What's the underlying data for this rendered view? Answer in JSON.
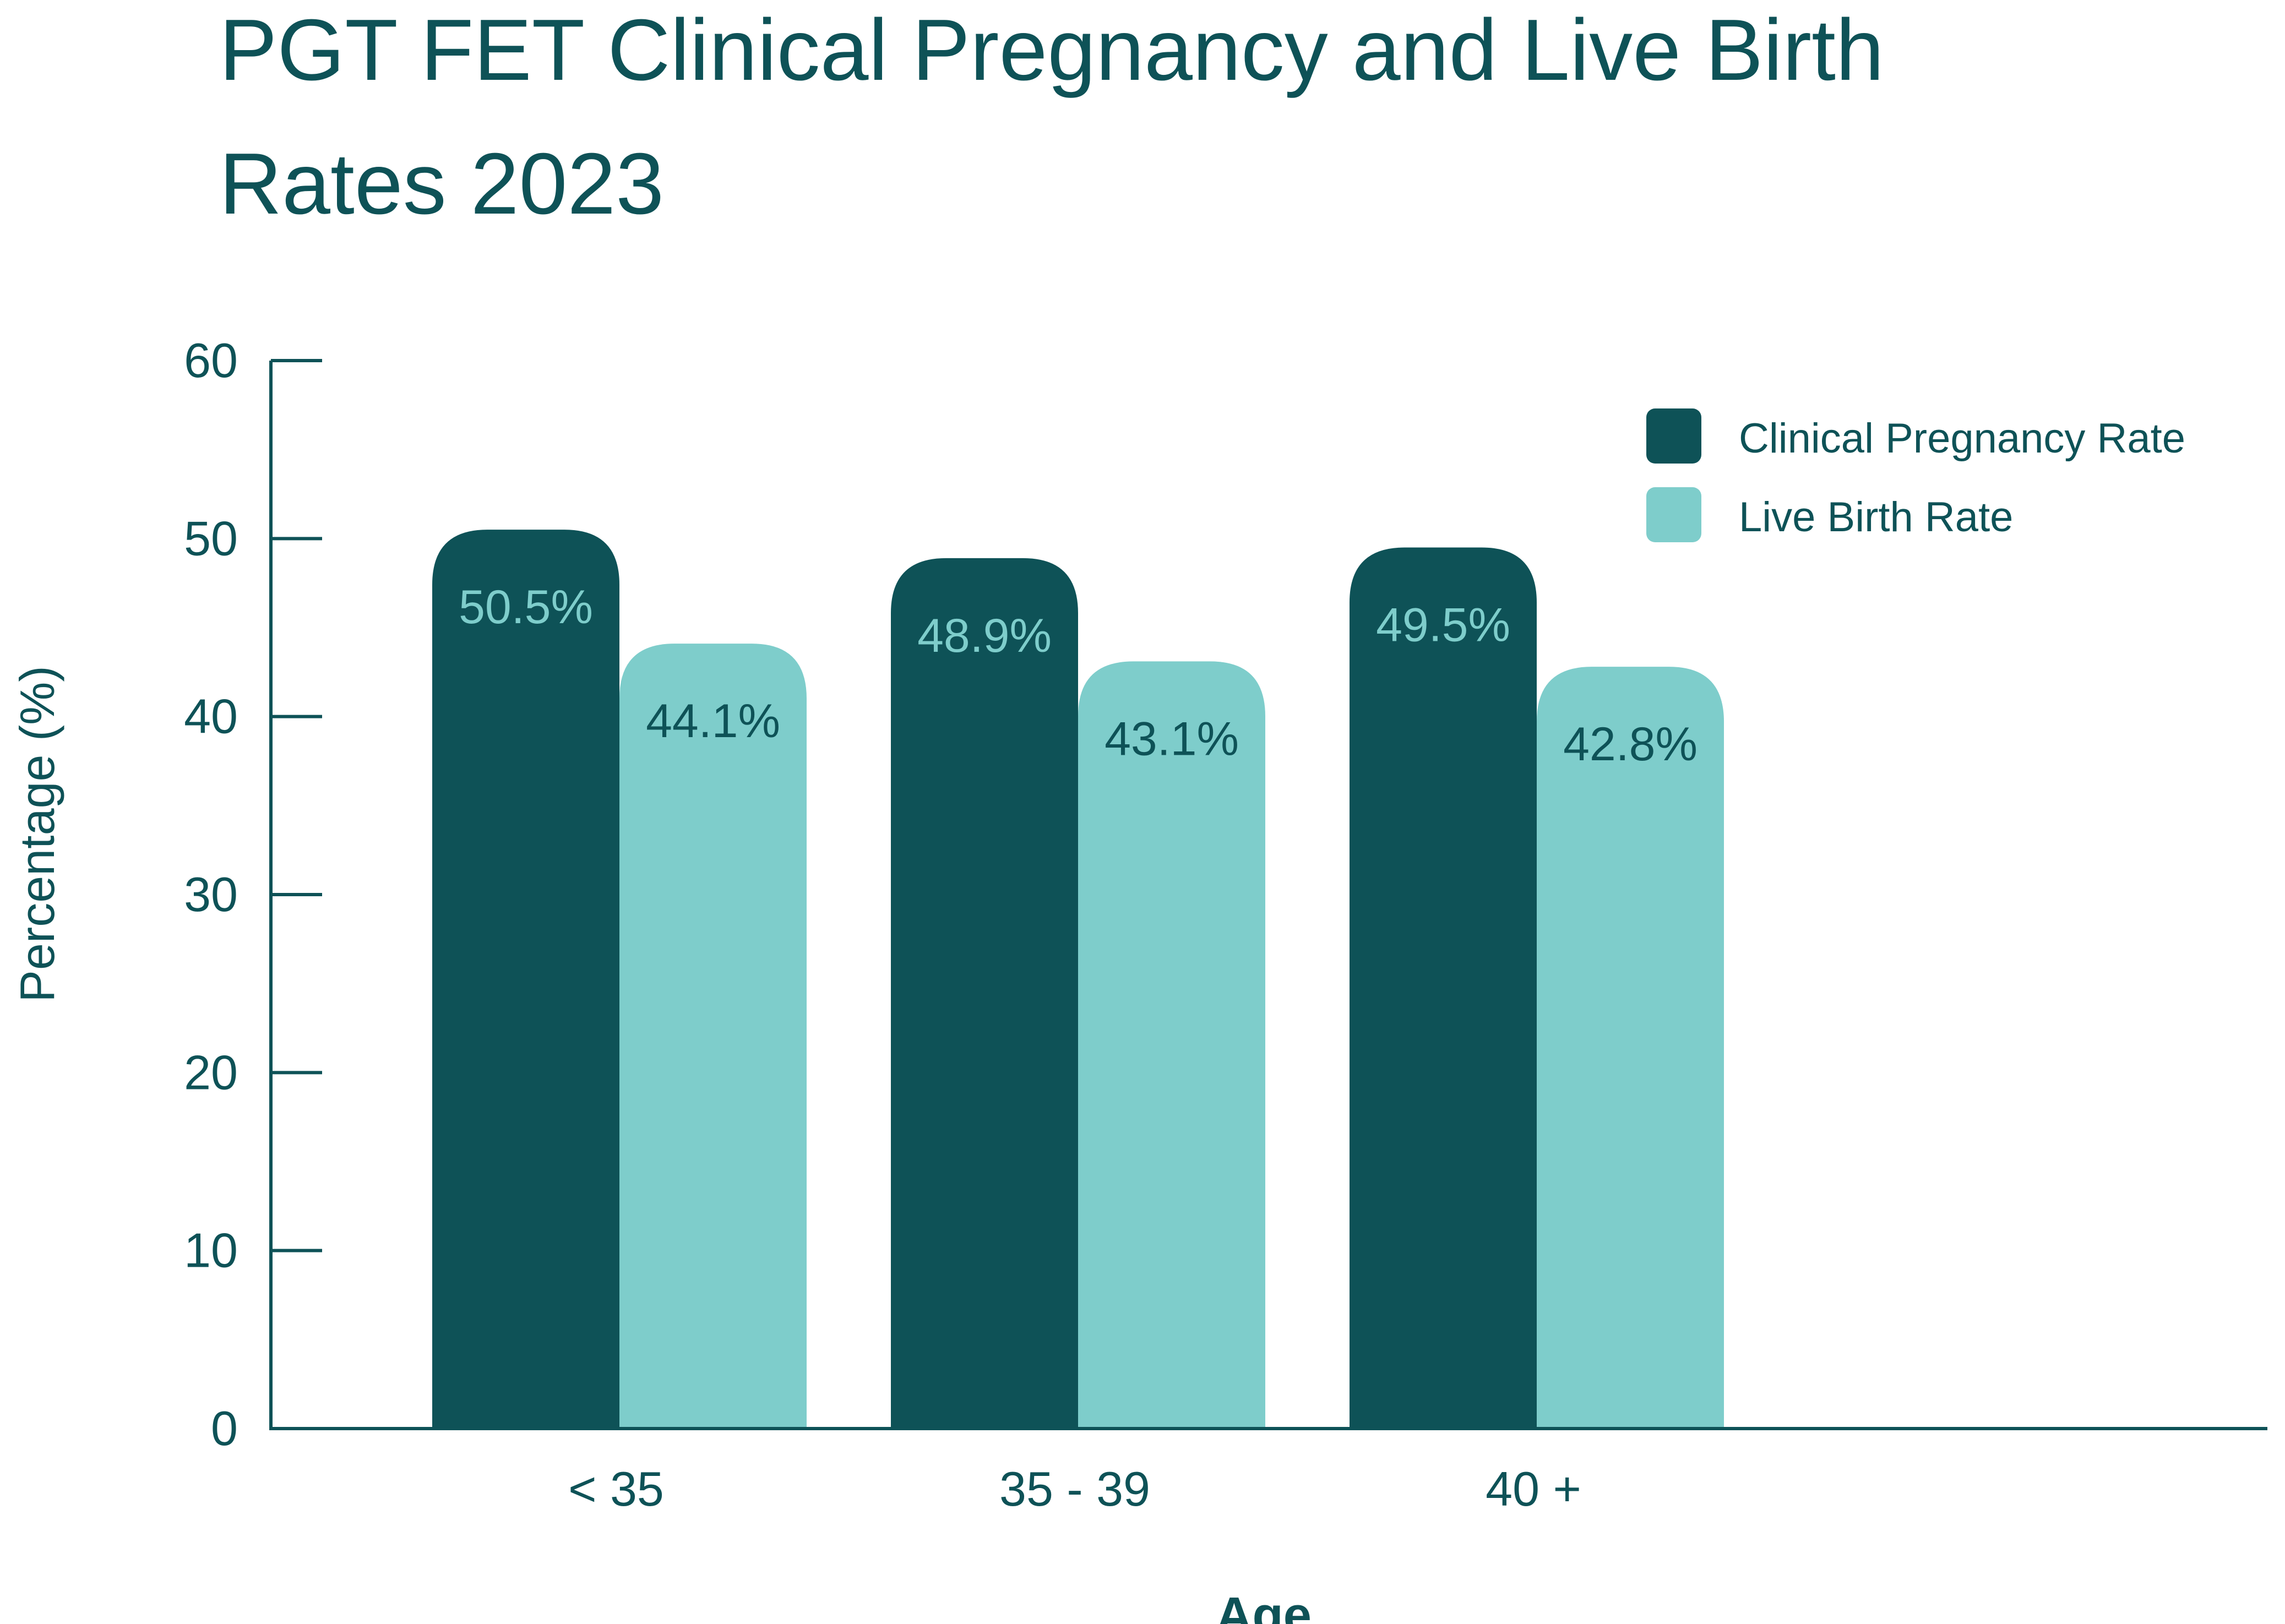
{
  "chart_data": {
    "type": "bar",
    "title_lines": [
      "PGT FET Clinical Pregnancy and Live Birth",
      "Rates 2023"
    ],
    "xlabel": "Age",
    "ylabel": "Percentage (%)",
    "categories": [
      "< 35",
      "35 - 39",
      "40 +"
    ],
    "ylim": [
      0,
      60
    ],
    "yticks": [
      0,
      10,
      20,
      30,
      40,
      50,
      60
    ],
    "grid": false,
    "legend_position": "top-right",
    "series": [
      {
        "name": "Clinical Pregnancy Rate",
        "color": "#0e5257",
        "label_color": "#7ecdcb",
        "values": [
          50.5,
          48.9,
          49.5
        ],
        "labels": [
          "50.5%",
          "48.9%",
          "49.5%"
        ]
      },
      {
        "name": "Live Birth Rate",
        "color": "#7ecdcb",
        "label_color": "#0e5257",
        "values": [
          44.1,
          43.1,
          42.8
        ],
        "labels": [
          "44.1%",
          "43.1%",
          "42.8%"
        ]
      }
    ]
  }
}
